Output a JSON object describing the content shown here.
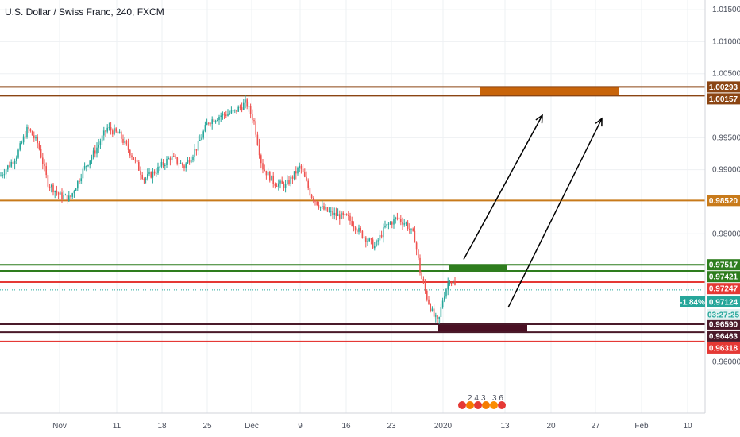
{
  "header": {
    "title": "U.S. Dollar / Swiss Franc, 240, FXCM"
  },
  "chart_data": {
    "type": "candlestick",
    "title": "U.S. Dollar / Swiss Franc, 240, FXCM",
    "ylim": [
      0.952,
      1.0165
    ],
    "y_ticks": [
      "1.01500",
      "1.01000",
      "1.00500",
      "0.99500",
      "0.99000",
      "0.98000",
      "0.96000"
    ],
    "y_tick_values": [
      1.015,
      1.01,
      1.005,
      0.995,
      0.99,
      0.98,
      0.96
    ],
    "x_ticks": [
      "Nov",
      "11",
      "18",
      "25",
      "Dec",
      "9",
      "16",
      "23",
      "2020",
      "13",
      "20",
      "27",
      "Feb",
      "10"
    ],
    "x_tick_positions": [
      75,
      147,
      204,
      261,
      317,
      378,
      436,
      493,
      558,
      636,
      694,
      750,
      808,
      866
    ],
    "price_path": [
      [
        0,
        0.989
      ],
      [
        20,
        0.992
      ],
      [
        35,
        0.9965
      ],
      [
        48,
        0.994
      ],
      [
        60,
        0.988
      ],
      [
        75,
        0.986
      ],
      [
        88,
        0.9855
      ],
      [
        105,
        0.99
      ],
      [
        120,
        0.993
      ],
      [
        135,
        0.9965
      ],
      [
        150,
        0.9955
      ],
      [
        165,
        0.9925
      ],
      [
        182,
        0.9885
      ],
      [
        198,
        0.99
      ],
      [
        215,
        0.992
      ],
      [
        232,
        0.9905
      ],
      [
        248,
        0.9935
      ],
      [
        262,
        0.9975
      ],
      [
        278,
        0.9985
      ],
      [
        295,
        0.999
      ],
      [
        310,
        1.0005
      ],
      [
        320,
        0.9975
      ],
      [
        330,
        0.9905
      ],
      [
        345,
        0.988
      ],
      [
        360,
        0.9875
      ],
      [
        378,
        0.9905
      ],
      [
        392,
        0.986
      ],
      [
        405,
        0.984
      ],
      [
        420,
        0.983
      ],
      [
        438,
        0.9825
      ],
      [
        455,
        0.98
      ],
      [
        472,
        0.978
      ],
      [
        485,
        0.981
      ],
      [
        500,
        0.9825
      ],
      [
        512,
        0.9815
      ],
      [
        522,
        0.9795
      ],
      [
        530,
        0.9735
      ],
      [
        538,
        0.97
      ],
      [
        546,
        0.9672
      ],
      [
        552,
        0.966
      ],
      [
        558,
        0.97
      ],
      [
        566,
        0.973
      ],
      [
        575,
        0.9715
      ]
    ],
    "levels": [
      {
        "label": "1.00293",
        "value": 1.00293,
        "color": "#8b4513"
      },
      {
        "label": "1.00157",
        "value": 1.00157,
        "color": "#8b4513"
      },
      {
        "label": "0.98520",
        "value": 0.9852,
        "color": "#c87a1a"
      },
      {
        "label": "0.97517",
        "value": 0.97517,
        "color": "#2e7d1e"
      },
      {
        "label": "0.97421",
        "value": 0.97421,
        "color": "#2e7d1e"
      },
      {
        "label": "0.97247",
        "value": 0.97247,
        "color": "#e53935"
      },
      {
        "label": "0.96590",
        "value": 0.9659,
        "color": "#4a1a2a"
      },
      {
        "label": "0.96463",
        "value": 0.96463,
        "color": "#4a1a2a"
      },
      {
        "label": "0.96318",
        "value": 0.96318,
        "color": "#e53935"
      }
    ],
    "current_price": {
      "label": "0.97124",
      "value": 0.97124,
      "color": "#26a69a"
    },
    "change_label": "-1.84%",
    "countdown_label": "03:27:25",
    "zones": [
      {
        "name": "resistance-zone",
        "from": 1.00157,
        "to": 1.00293,
        "color": "#c8640a"
      },
      {
        "name": "entry-zone",
        "from": 0.97421,
        "to": 0.97517,
        "color": "#2e7d1e"
      },
      {
        "name": "demand-zone",
        "from": 0.96463,
        "to": 0.9659,
        "color": "#4a1024"
      }
    ],
    "projection_arrows": 2
  },
  "event_markers": {
    "label_top": "2 4",
    "label_bottom": "3 6",
    "label_mid": "3"
  }
}
